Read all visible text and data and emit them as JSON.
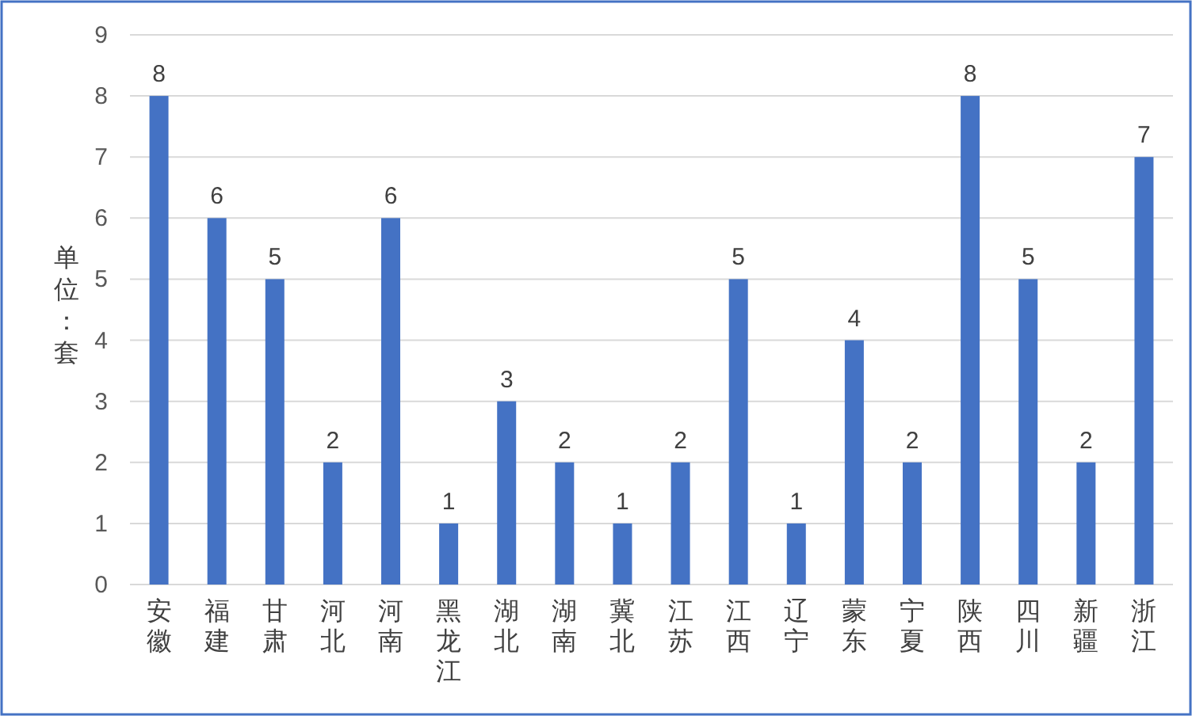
{
  "chart_data": {
    "type": "bar",
    "ylabel": "单位：套",
    "categories": [
      "安徽",
      "福建",
      "甘肃",
      "河北",
      "河南",
      "黑龙江",
      "湖北",
      "湖南",
      "冀北",
      "江苏",
      "江西",
      "辽宁",
      "蒙东",
      "宁夏",
      "陕西",
      "四川",
      "新疆",
      "浙江"
    ],
    "values": [
      8,
      6,
      5,
      2,
      6,
      1,
      3,
      2,
      1,
      2,
      5,
      1,
      4,
      2,
      8,
      5,
      2,
      7
    ],
    "color": "#4472c4",
    "ylim": [
      0,
      9
    ],
    "yticks": [
      0,
      1,
      2,
      3,
      4,
      5,
      6,
      7,
      8,
      9
    ],
    "grid": "y",
    "data_labels": true
  }
}
